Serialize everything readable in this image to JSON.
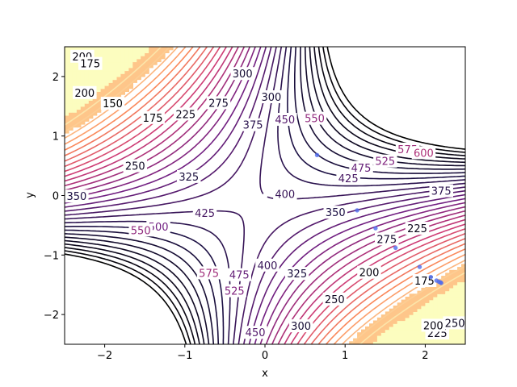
{
  "chart_data": {
    "type": "contour",
    "title": "",
    "xlabel": "x",
    "ylabel": "y",
    "xlim": [
      -2.5,
      2.5
    ],
    "ylim": [
      -2.5,
      2.5
    ],
    "x_ticks": [
      -2,
      -1,
      0,
      1,
      2
    ],
    "y_ticks": [
      -2,
      -1,
      0,
      1,
      2
    ],
    "x_tick_labels": [
      "−2",
      "−1",
      "0",
      "1",
      "2"
    ],
    "y_tick_labels": [
      "−2",
      "−1",
      "0",
      "1",
      "2"
    ],
    "grid": false,
    "colormap": "magma",
    "level_step": 25,
    "fill_color": "#fcfdbf",
    "trajectory_color": "#4f6bed",
    "contour_labels": [
      {
        "value": 400,
        "x": 0.25,
        "y": 0.03
      },
      {
        "value": 400,
        "x": 0.03,
        "y": -1.17
      },
      {
        "value": 425,
        "x": 1.04,
        "y": 0.29
      },
      {
        "value": 425,
        "x": -0.75,
        "y": -0.29
      },
      {
        "value": 375,
        "x": -0.15,
        "y": 1.19
      },
      {
        "value": 375,
        "x": 2.2,
        "y": 0.08
      },
      {
        "value": 350,
        "x": 0.88,
        "y": -0.28
      },
      {
        "value": 350,
        "x": -2.35,
        "y": -0.01
      },
      {
        "value": 325,
        "x": -0.95,
        "y": 0.32
      },
      {
        "value": 325,
        "x": 0.4,
        "y": -1.31
      },
      {
        "value": 300,
        "x": 0.08,
        "y": 1.66
      },
      {
        "value": 300,
        "x": -0.28,
        "y": 2.05
      },
      {
        "value": 300,
        "x": 0.45,
        "y": -2.19
      },
      {
        "value": 275,
        "x": -0.58,
        "y": 1.56
      },
      {
        "value": 275,
        "x": 1.52,
        "y": -0.73
      },
      {
        "value": 250,
        "x": -1.62,
        "y": 0.5
      },
      {
        "value": 250,
        "x": 0.87,
        "y": -1.74
      },
      {
        "value": 225,
        "x": -0.99,
        "y": 1.37
      },
      {
        "value": 225,
        "x": 1.9,
        "y": -0.55
      },
      {
        "value": 225,
        "x": 2.15,
        "y": -2.31
      },
      {
        "value": 200,
        "x": -2.25,
        "y": 1.73
      },
      {
        "value": 200,
        "x": -2.28,
        "y": 2.34
      },
      {
        "value": 200,
        "x": 1.3,
        "y": -1.29
      },
      {
        "value": 200,
        "x": 2.1,
        "y": -2.18
      },
      {
        "value": 175,
        "x": -1.4,
        "y": 1.31
      },
      {
        "value": 175,
        "x": -2.18,
        "y": 2.22
      },
      {
        "value": 175,
        "x": 1.99,
        "y": -1.43
      },
      {
        "value": 150,
        "x": -1.9,
        "y": 1.55
      },
      {
        "value": 250,
        "x": 2.37,
        "y": -2.14
      },
      {
        "value": 450,
        "x": 0.25,
        "y": 1.28
      },
      {
        "value": 450,
        "x": -0.12,
        "y": -2.3
      },
      {
        "value": 475,
        "x": 1.2,
        "y": 0.47
      },
      {
        "value": 475,
        "x": -0.32,
        "y": -1.33
      },
      {
        "value": 500,
        "x": -1.33,
        "y": -0.52
      },
      {
        "value": 525,
        "x": 1.5,
        "y": 0.58
      },
      {
        "value": 525,
        "x": -0.38,
        "y": -1.6
      },
      {
        "value": 550,
        "x": 0.62,
        "y": 1.3
      },
      {
        "value": 550,
        "x": -1.55,
        "y": -0.58
      },
      {
        "value": 575,
        "x": 1.78,
        "y": 0.78
      },
      {
        "value": 575,
        "x": -0.7,
        "y": -1.3
      },
      {
        "value": 600,
        "x": 1.98,
        "y": 0.72
      }
    ],
    "trajectory": [
      {
        "x": 0.65,
        "y": 0.68
      },
      {
        "x": 1.15,
        "y": -0.25
      },
      {
        "x": 1.38,
        "y": -0.55
      },
      {
        "x": 1.63,
        "y": -0.88
      },
      {
        "x": 1.93,
        "y": -1.2
      },
      {
        "x": 2.07,
        "y": -1.37
      },
      {
        "x": 2.14,
        "y": -1.43
      },
      {
        "x": 2.17,
        "y": -1.45
      },
      {
        "x": 2.19,
        "y": -1.46
      },
      {
        "x": 2.2,
        "y": -1.47
      }
    ]
  }
}
